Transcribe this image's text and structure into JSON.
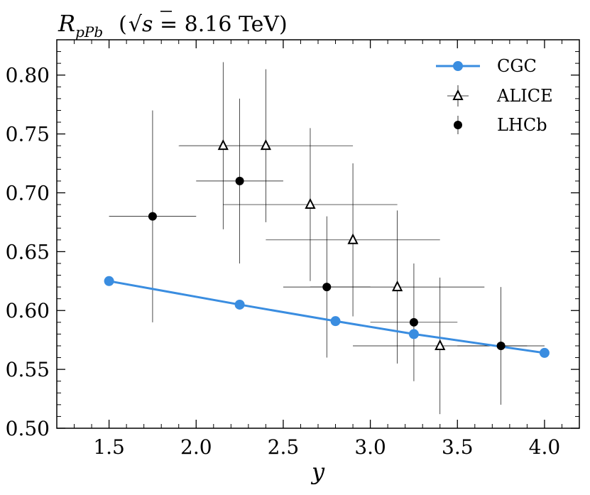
{
  "chart_data": {
    "type": "scatter",
    "title": "R_pPb (√s = 8.16 TeV)",
    "title_parts": {
      "symbol": "R",
      "subscript": "pPb",
      "open": "(",
      "sqrt_var": "s",
      "equals_value": " = 8.16 TeV)"
    },
    "xlabel": "y",
    "ylabel": "",
    "xlim": [
      1.2,
      4.2
    ],
    "ylim": [
      0.5,
      0.83
    ],
    "xticks": [
      1.5,
      2.0,
      2.5,
      3.0,
      3.5,
      4.0
    ],
    "xtick_labels": [
      "1.5",
      "2.0",
      "2.5",
      "3.0",
      "3.5",
      "4.0"
    ],
    "yticks": [
      0.5,
      0.55,
      0.6,
      0.65,
      0.7,
      0.75,
      0.8
    ],
    "ytick_labels": [
      "0.50",
      "0.55",
      "0.60",
      "0.65",
      "0.70",
      "0.75",
      "0.80"
    ],
    "legend_position": "top-right",
    "series": [
      {
        "name": "CGC",
        "style": "line-with-markers",
        "color": "#3a8de0",
        "points": [
          {
            "x": 1.5,
            "y": 0.625
          },
          {
            "x": 2.25,
            "y": 0.605
          },
          {
            "x": 2.8,
            "y": 0.591
          },
          {
            "x": 3.25,
            "y": 0.58
          },
          {
            "x": 4.0,
            "y": 0.564
          }
        ]
      },
      {
        "name": "ALICE",
        "style": "open-triangle",
        "color": "#000000",
        "points": [
          {
            "x": 2.155,
            "y": 0.74,
            "xerr": 0.25,
            "yerr_up": 0.071,
            "yerr_down": 0.071
          },
          {
            "x": 2.4,
            "y": 0.74,
            "xerr": 0.5,
            "yerr_up": 0.065,
            "yerr_down": 0.065
          },
          {
            "x": 2.655,
            "y": 0.69,
            "xerr": 0.5,
            "yerr_up": 0.065,
            "yerr_down": 0.065
          },
          {
            "x": 2.9,
            "y": 0.66,
            "xerr": 0.5,
            "yerr_up": 0.065,
            "yerr_down": 0.065
          },
          {
            "x": 3.155,
            "y": 0.62,
            "xerr": 0.5,
            "yerr_up": 0.065,
            "yerr_down": 0.065
          },
          {
            "x": 3.4,
            "y": 0.57,
            "xerr": 0.5,
            "yerr_up": 0.058,
            "yerr_down": 0.058
          }
        ]
      },
      {
        "name": "LHCb",
        "style": "filled-circle",
        "color": "#000000",
        "points": [
          {
            "x": 1.75,
            "y": 0.68,
            "xerr": 0.25,
            "yerr_up": 0.09,
            "yerr_down": 0.09
          },
          {
            "x": 2.25,
            "y": 0.71,
            "xerr": 0.25,
            "yerr_up": 0.07,
            "yerr_down": 0.07
          },
          {
            "x": 2.75,
            "y": 0.62,
            "xerr": 0.25,
            "yerr_up": 0.06,
            "yerr_down": 0.06
          },
          {
            "x": 3.25,
            "y": 0.59,
            "xerr": 0.25,
            "yerr_up": 0.05,
            "yerr_down": 0.05
          },
          {
            "x": 3.75,
            "y": 0.57,
            "xerr": 0.25,
            "yerr_up": 0.05,
            "yerr_down": 0.05
          }
        ]
      }
    ]
  }
}
